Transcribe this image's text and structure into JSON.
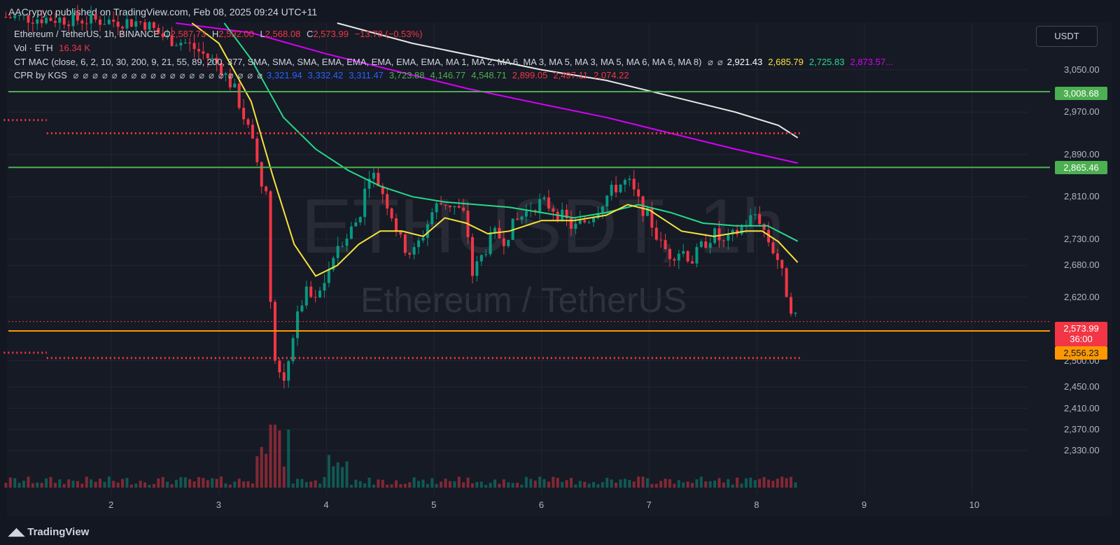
{
  "publisher": "AACrypyo published on TradingView.com, Feb 08, 2025 09:24 UTC+11",
  "symbol": {
    "name": "Ethereum / TetherUS, 1h, BINANCE",
    "open_label": "O",
    "open": "2,587.73",
    "high_label": "H",
    "high": "2,592.00",
    "low_label": "L",
    "low": "2,568.08",
    "close_label": "C",
    "close": "2,573.99",
    "change": "−13.78 (−0.53%)"
  },
  "volume": {
    "label": "Vol · ETH",
    "value": "16.34 K"
  },
  "indicators": {
    "ct_mac": "CT MAC (close, 6, 2, 10, 30, 200, 9, 21, 55, 89, 200, 377, SMA, SMA, SMA, EMA, EMA, EMA, EMA, EMA, MA 1, MA 2, MA 6, MA 3, MA 5, MA 3, MA 5, MA 6, MA 6, MA 8)",
    "ct_mac_values": [
      {
        "v": "2,921.43",
        "color": "#ffffff"
      },
      {
        "v": "2,685.79",
        "color": "#f5e33b"
      },
      {
        "v": "2,725.83",
        "color": "#26d98a"
      },
      {
        "v": "2,873.57...",
        "color": "#d500f9"
      }
    ],
    "cpr": "CPR by KGS",
    "cpr_values": [
      {
        "v": "3,321.94",
        "color": "#2962ff"
      },
      {
        "v": "3,332.42",
        "color": "#2962ff"
      },
      {
        "v": "3,311.47",
        "color": "#2962ff"
      },
      {
        "v": "3,723.88",
        "color": "#4caf50"
      },
      {
        "v": "4,146.77",
        "color": "#4caf50"
      },
      {
        "v": "4,548.71",
        "color": "#4caf50"
      },
      {
        "v": "2,899.05",
        "color": "#f23645"
      },
      {
        "v": "2,497.11",
        "color": "#f23645"
      },
      {
        "v": "2,074.22",
        "color": "#f23645"
      }
    ]
  },
  "currency_button": "USDT",
  "watermark": {
    "line1": "ETHUSDT, 1h",
    "line2": "Ethereum / TetherUS"
  },
  "footer": "TradingView",
  "price_tags": {
    "resistance_upper": "3,008.68",
    "resistance_lower": "2,865.46",
    "last": "2,573.99",
    "countdown": "36:00",
    "support": "2,556.23"
  },
  "colors": {
    "up": "#089981",
    "down": "#f23645",
    "background": "#161a25"
  },
  "chart_data": {
    "type": "candlestick",
    "y_ticks": [
      "3,050.00",
      "2,970.00",
      "2,890.00",
      "2,810.00",
      "2,730.00",
      "2,680.00",
      "2,620.00",
      "2,500.00",
      "2,450.00",
      "2,410.00",
      "2,370.00",
      "2,330.00"
    ],
    "x_ticks": [
      "2",
      "3",
      "4",
      "5",
      "6",
      "7",
      "8",
      "9",
      "10"
    ],
    "horizontal_levels": [
      {
        "price": 3008.68,
        "color": "#4caf50",
        "style": "solid"
      },
      {
        "price": 2865.46,
        "color": "#4caf50",
        "style": "solid"
      },
      {
        "price": 2556.23,
        "color": "#ff9800",
        "style": "solid"
      },
      {
        "price": 2573.99,
        "color": "#f23645",
        "style": "dotted"
      }
    ],
    "cpr_levels": [
      {
        "price": 2955,
        "from_day": 1.0,
        "to_day": 1.4
      },
      {
        "price": 2930,
        "from_day": 1.4,
        "to_day": 8.4
      },
      {
        "price": 2515,
        "from_day": 1.0,
        "to_day": 1.4
      },
      {
        "price": 2505,
        "from_day": 1.4,
        "to_day": 8.4
      }
    ],
    "close_series": [
      [
        1.0,
        3150
      ],
      [
        2.3,
        3140
      ],
      [
        2.5,
        3110
      ],
      [
        2.7,
        3100
      ],
      [
        2.85,
        3080
      ],
      [
        3.0,
        3060
      ],
      [
        3.15,
        3010
      ],
      [
        3.3,
        2920
      ],
      [
        3.45,
        2800
      ],
      [
        3.5,
        2510
      ],
      [
        3.6,
        2460
      ],
      [
        3.7,
        2560
      ],
      [
        3.8,
        2630
      ],
      [
        3.9,
        2610
      ],
      [
        4.0,
        2660
      ],
      [
        4.1,
        2720
      ],
      [
        4.2,
        2740
      ],
      [
        4.3,
        2770
      ],
      [
        4.4,
        2860
      ],
      [
        4.5,
        2830
      ],
      [
        4.6,
        2780
      ],
      [
        4.7,
        2720
      ],
      [
        4.8,
        2700
      ],
      [
        4.9,
        2740
      ],
      [
        5.0,
        2790
      ],
      [
        5.1,
        2800
      ],
      [
        5.2,
        2790
      ],
      [
        5.3,
        2770
      ],
      [
        5.35,
        2660
      ],
      [
        5.45,
        2700
      ],
      [
        5.55,
        2740
      ],
      [
        5.65,
        2730
      ],
      [
        5.75,
        2760
      ],
      [
        5.9,
        2790
      ],
      [
        6.0,
        2800
      ],
      [
        6.1,
        2790
      ],
      [
        6.2,
        2770
      ],
      [
        6.3,
        2750
      ],
      [
        6.45,
        2770
      ],
      [
        6.6,
        2810
      ],
      [
        6.7,
        2830
      ],
      [
        6.8,
        2840
      ],
      [
        6.9,
        2800
      ],
      [
        7.0,
        2770
      ],
      [
        7.1,
        2720
      ],
      [
        7.2,
        2700
      ],
      [
        7.3,
        2710
      ],
      [
        7.4,
        2690
      ],
      [
        7.5,
        2720
      ],
      [
        7.6,
        2740
      ],
      [
        7.7,
        2720
      ],
      [
        7.8,
        2740
      ],
      [
        7.9,
        2760
      ],
      [
        8.0,
        2780
      ],
      [
        8.1,
        2730
      ],
      [
        8.2,
        2690
      ],
      [
        8.3,
        2610
      ],
      [
        8.38,
        2573.99
      ]
    ],
    "ema_yellow": [
      [
        2.75,
        3160
      ],
      [
        3.0,
        3100
      ],
      [
        3.3,
        2990
      ],
      [
        3.5,
        2850
      ],
      [
        3.7,
        2720
      ],
      [
        3.9,
        2660
      ],
      [
        4.1,
        2680
      ],
      [
        4.3,
        2720
      ],
      [
        4.5,
        2745
      ],
      [
        4.7,
        2745
      ],
      [
        4.9,
        2735
      ],
      [
        5.1,
        2770
      ],
      [
        5.3,
        2760
      ],
      [
        5.5,
        2740
      ],
      [
        5.7,
        2745
      ],
      [
        6.0,
        2765
      ],
      [
        6.3,
        2765
      ],
      [
        6.6,
        2775
      ],
      [
        6.8,
        2795
      ],
      [
        7.0,
        2785
      ],
      [
        7.3,
        2745
      ],
      [
        7.6,
        2735
      ],
      [
        7.9,
        2745
      ],
      [
        8.05,
        2745
      ],
      [
        8.2,
        2725
      ],
      [
        8.38,
        2685.79
      ]
    ],
    "ema_green": [
      [
        3.05,
        3160
      ],
      [
        3.3,
        3070
      ],
      [
        3.6,
        2960
      ],
      [
        3.9,
        2900
      ],
      [
        4.2,
        2860
      ],
      [
        4.5,
        2830
      ],
      [
        4.8,
        2810
      ],
      [
        5.1,
        2800
      ],
      [
        5.4,
        2795
      ],
      [
        5.7,
        2790
      ],
      [
        6.0,
        2780
      ],
      [
        6.3,
        2770
      ],
      [
        6.6,
        2780
      ],
      [
        6.9,
        2795
      ],
      [
        7.2,
        2780
      ],
      [
        7.5,
        2760
      ],
      [
        7.8,
        2755
      ],
      [
        8.1,
        2755
      ],
      [
        8.38,
        2725.83
      ]
    ],
    "ma_white": [
      [
        4.1,
        3150
      ],
      [
        4.8,
        3100
      ],
      [
        5.4,
        3075
      ],
      [
        6.0,
        3050
      ],
      [
        6.6,
        3030
      ],
      [
        7.2,
        3000
      ],
      [
        7.8,
        2970
      ],
      [
        8.2,
        2945
      ],
      [
        8.38,
        2921.43
      ]
    ],
    "ma_magenta": [
      [
        2.6,
        3150
      ],
      [
        3.3,
        3120
      ],
      [
        4.0,
        3080
      ],
      [
        4.6,
        3050
      ],
      [
        5.3,
        3015
      ],
      [
        6.0,
        2985
      ],
      [
        6.6,
        2960
      ],
      [
        7.2,
        2930
      ],
      [
        7.8,
        2900
      ],
      [
        8.38,
        2873.57
      ]
    ]
  }
}
